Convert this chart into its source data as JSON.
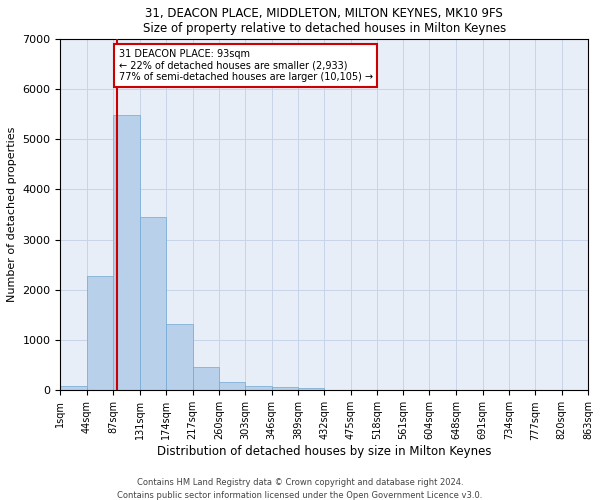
{
  "title1": "31, DEACON PLACE, MIDDLETON, MILTON KEYNES, MK10 9FS",
  "title2": "Size of property relative to detached houses in Milton Keynes",
  "xlabel": "Distribution of detached houses by size in Milton Keynes",
  "ylabel": "Number of detached properties",
  "footnote1": "Contains HM Land Registry data © Crown copyright and database right 2024.",
  "footnote2": "Contains public sector information licensed under the Open Government Licence v3.0.",
  "bar_color": "#b8d0ea",
  "bar_edge_color": "#6fa8d4",
  "grid_color": "#c8d4e8",
  "bg_color": "#e8eef8",
  "annotation_text": "31 DEACON PLACE: 93sqm\n← 22% of detached houses are smaller (2,933)\n77% of semi-detached houses are larger (10,105) →",
  "annotation_box_color": "#ffffff",
  "annotation_edge_color": "#cc0000",
  "vline_color": "#cc0000",
  "property_size": 93,
  "bin_edges": [
    1,
    44,
    87,
    131,
    174,
    217,
    260,
    303,
    346,
    389,
    432,
    475,
    518,
    561,
    604,
    648,
    691,
    734,
    777,
    820,
    863
  ],
  "bin_labels": [
    "1sqm",
    "44sqm",
    "87sqm",
    "131sqm",
    "174sqm",
    "217sqm",
    "260sqm",
    "303sqm",
    "346sqm",
    "389sqm",
    "432sqm",
    "475sqm",
    "518sqm",
    "561sqm",
    "604sqm",
    "648sqm",
    "691sqm",
    "734sqm",
    "777sqm",
    "820sqm",
    "863sqm"
  ],
  "bar_heights": [
    80,
    2280,
    5480,
    3450,
    1320,
    470,
    155,
    90,
    65,
    50,
    0,
    0,
    0,
    0,
    0,
    0,
    0,
    0,
    0,
    0
  ],
  "ylim": [
    0,
    7000
  ],
  "yticks": [
    0,
    1000,
    2000,
    3000,
    4000,
    5000,
    6000,
    7000
  ]
}
